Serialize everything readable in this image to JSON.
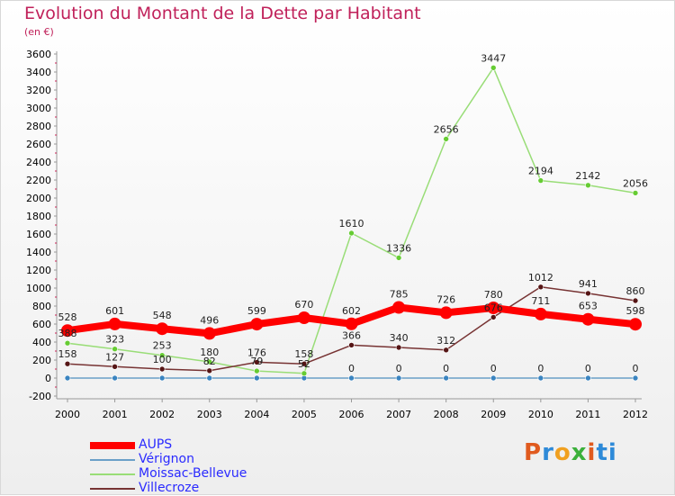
{
  "chart_data": {
    "type": "line",
    "title": "Evolution du Montant de la Dette par Habitant",
    "subtitle": "(en €)",
    "xlabel": "",
    "ylabel": "",
    "ylim": [
      -200,
      3600
    ],
    "ytick_step": 200,
    "grid": false,
    "legend_position": "bottom-left",
    "categories": [
      "2000",
      "2001",
      "2002",
      "2003",
      "2004",
      "2005",
      "2006",
      "2007",
      "2008",
      "2009",
      "2010",
      "2011",
      "2012"
    ],
    "series": [
      {
        "name": "AUPS",
        "color": "#ff0000",
        "marker": "#ff0000",
        "values": [
          528,
          601,
          548,
          496,
          599,
          670,
          602,
          785,
          726,
          780,
          711,
          653,
          598
        ],
        "labels": [
          "528",
          "601",
          "548",
          "496",
          "599",
          "670",
          "602",
          "785",
          "726",
          "780",
          "711",
          "653",
          "598"
        ]
      },
      {
        "name": "Vérignon",
        "color": "#6aa0c8",
        "marker": "#3a84c0",
        "values": [
          0,
          0,
          0,
          0,
          0,
          0,
          0,
          0,
          0,
          0,
          0,
          0,
          0
        ],
        "labels": [
          "",
          "",
          "",
          "",
          "",
          "",
          "0",
          "0",
          "0",
          "0",
          "0",
          "0",
          "0"
        ]
      },
      {
        "name": "Moissac-Bellevue",
        "color": "#99dd77",
        "marker": "#66cc33",
        "values": [
          388,
          323,
          253,
          180,
          79,
          52,
          1610,
          1336,
          2656,
          3447,
          2194,
          2142,
          2056
        ],
        "labels": [
          "388",
          "323",
          "253",
          "180",
          "79",
          "52",
          "1610",
          "1336",
          "2656",
          "3447",
          "2194",
          "2142",
          "2056"
        ]
      },
      {
        "name": "Villecroze",
        "color": "#773333",
        "marker": "#551515",
        "values": [
          158,
          127,
          100,
          82,
          176,
          158,
          366,
          340,
          312,
          676,
          1012,
          941,
          860
        ],
        "labels": [
          "158",
          "127",
          "100",
          "82",
          "176",
          "158",
          "366",
          "340",
          "312",
          "676",
          "1012",
          "941",
          "860"
        ]
      }
    ]
  },
  "logo": [
    "P",
    "r",
    "o",
    "x",
    "i",
    "ti"
  ]
}
